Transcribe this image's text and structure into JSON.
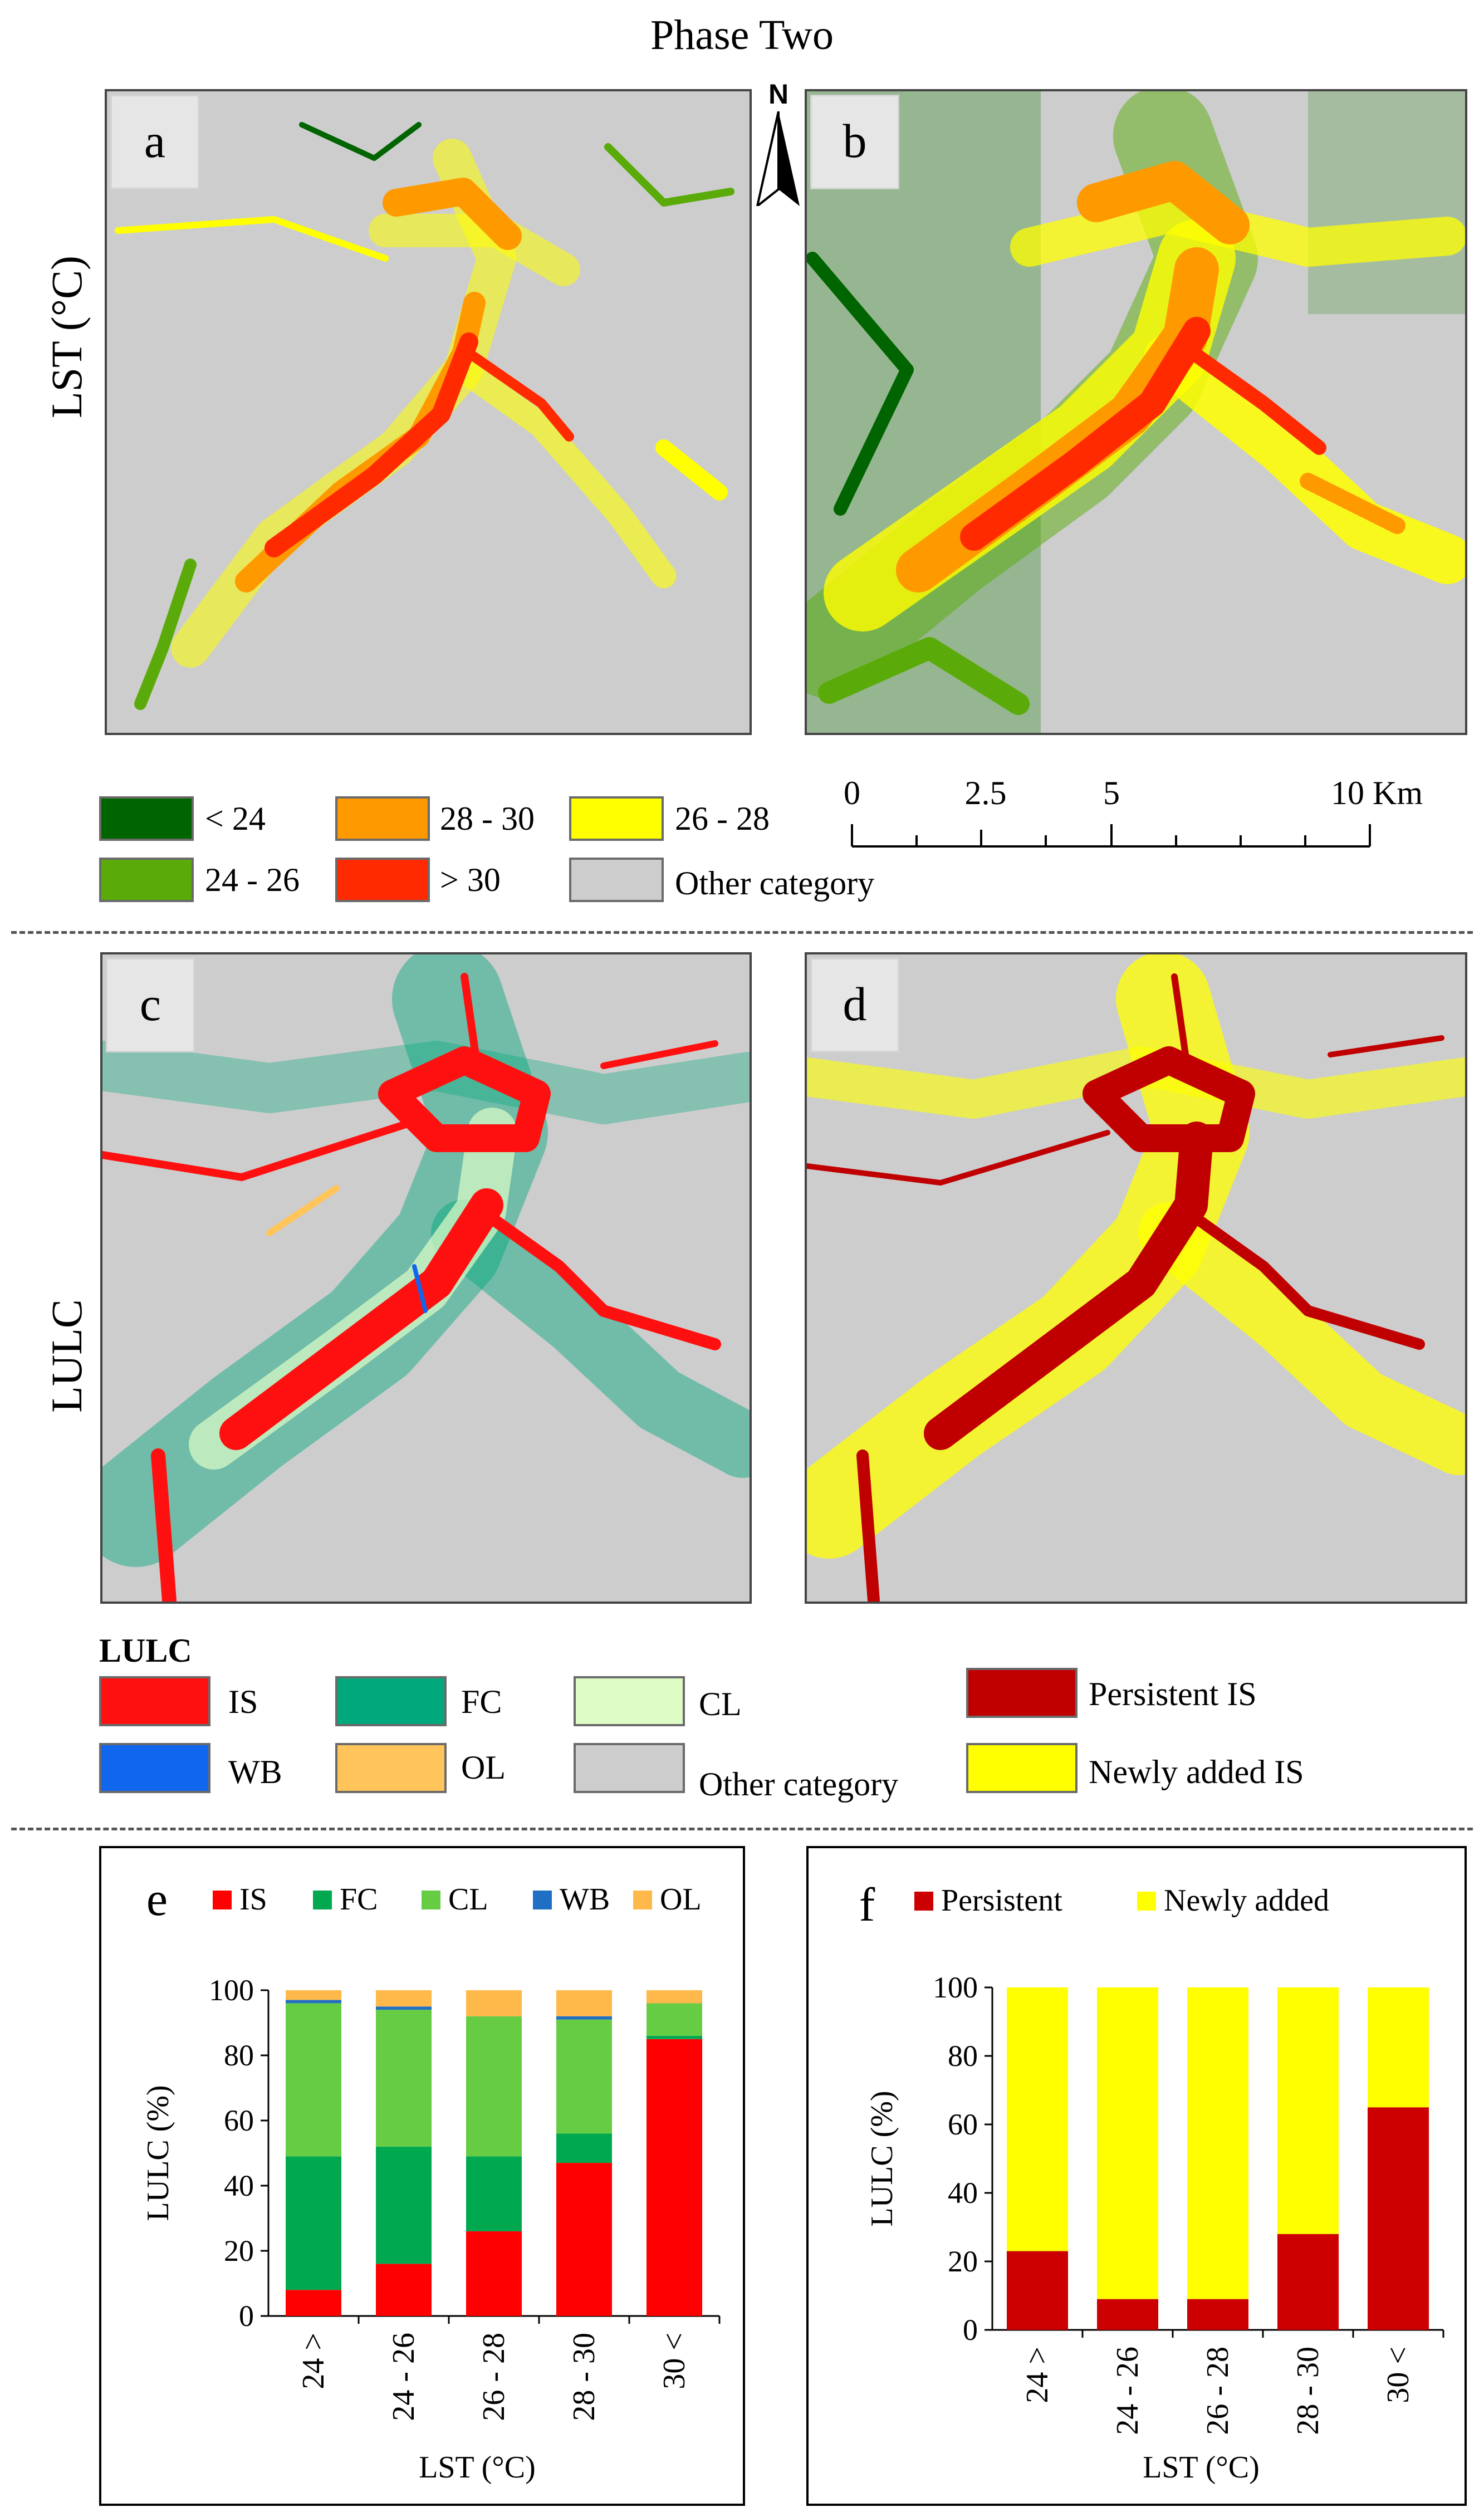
{
  "figure_title": "Phase Two",
  "row_labels": {
    "lst": "LST (°C)",
    "lulc": "LULC"
  },
  "panel_letters": {
    "a": "a",
    "b": "b",
    "c": "c",
    "d": "d",
    "e": "e",
    "f": "f"
  },
  "north_label": "N",
  "lst_legend": {
    "items": [
      {
        "label": "< 24",
        "color": "#006400"
      },
      {
        "label": "28 - 30",
        "color": "#ff9900"
      },
      {
        "label": "26 - 28",
        "color": "#ffff00"
      },
      {
        "label": "24 - 26",
        "color": "#5aab0a"
      },
      {
        "label": "> 30",
        "color": "#ff2a00"
      },
      {
        "label": "Other category",
        "color": "#cdcdcd"
      }
    ]
  },
  "scale_bar": {
    "ticks": [
      "0",
      "2.5",
      "5",
      "10 Km"
    ]
  },
  "lulc_legend": {
    "heading": "LULC",
    "items": [
      {
        "label": "IS",
        "color": "#ff1010"
      },
      {
        "label": "FC",
        "color": "#00a87c"
      },
      {
        "label": "CL",
        "color": "#ddfcc6"
      },
      {
        "label": "WB",
        "color": "#1166ee"
      },
      {
        "label": "OL",
        "color": "#ffc45a"
      },
      {
        "label": "Other category",
        "color": "#cdcdcd"
      },
      {
        "label": "Persistent IS",
        "color": "#c00000"
      },
      {
        "label": "Newly added IS",
        "color": "#ffff00"
      }
    ]
  },
  "colors": {
    "map_background": "#cdcdcd"
  },
  "chart_data": [
    {
      "id": "e",
      "type": "bar",
      "stacked": true,
      "categories": [
        "24 >",
        "24 - 26",
        "26 - 28",
        "28 - 30",
        "30 <"
      ],
      "series": [
        {
          "name": "IS",
          "color": "#ff0000",
          "values": [
            8,
            16,
            26,
            47,
            85
          ]
        },
        {
          "name": "FC",
          "color": "#00a850",
          "values": [
            41,
            36,
            23,
            9,
            1
          ]
        },
        {
          "name": "CL",
          "color": "#66cc44",
          "values": [
            47,
            42,
            43,
            35,
            10
          ]
        },
        {
          "name": "WB",
          "color": "#1f6fc4",
          "values": [
            1,
            1,
            0,
            1,
            0
          ]
        },
        {
          "name": "OL",
          "color": "#ffb84a",
          "values": [
            3,
            5,
            8,
            8,
            4
          ]
        }
      ],
      "xlabel": "LST (°C)",
      "ylabel": "LULC (%)",
      "ylim": [
        0,
        100
      ],
      "yticks": [
        0,
        20,
        40,
        60,
        80,
        100
      ],
      "legend": "top"
    },
    {
      "id": "f",
      "type": "bar",
      "stacked": true,
      "categories": [
        "24 >",
        "24 - 26",
        "26 - 28",
        "28 - 30",
        "30 <"
      ],
      "series": [
        {
          "name": "Persistent",
          "color": "#cc0000",
          "values": [
            23,
            9,
            9,
            28,
            65
          ]
        },
        {
          "name": "Newly added",
          "color": "#ffff00",
          "values": [
            77,
            91,
            91,
            72,
            35
          ]
        }
      ],
      "xlabel": "LST (°C)",
      "ylabel": "LULC (%)",
      "ylim": [
        0,
        100
      ],
      "yticks": [
        0,
        20,
        40,
        60,
        80,
        100
      ],
      "legend": "top"
    }
  ]
}
